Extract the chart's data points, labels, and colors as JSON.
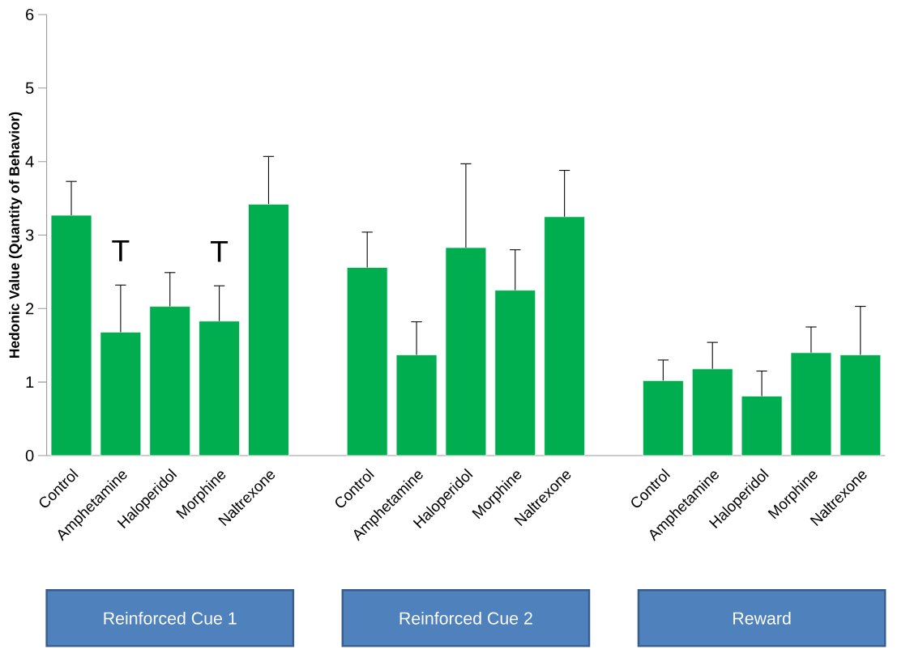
{
  "chart_data": {
    "type": "bar",
    "ylabel": "Hedonic Value (Quantity of Behavior)",
    "categories": [
      "Control",
      "Amphetamine",
      "Haloperidol",
      "Morphine",
      "Naltrexone",
      null,
      "Control",
      "Amphetamine",
      "Haloperidol",
      "Morphine",
      "Naltrexone",
      null,
      "Control",
      "Amphetamine",
      "Haloperidol",
      "Morphine",
      "Naltrexone"
    ],
    "values": [
      3.27,
      1.68,
      2.03,
      1.83,
      3.42,
      null,
      2.56,
      1.37,
      2.83,
      2.25,
      3.25,
      null,
      1.02,
      1.18,
      0.81,
      1.4,
      1.37
    ],
    "errors": [
      0.46,
      0.64,
      0.46,
      0.48,
      0.65,
      null,
      0.48,
      0.45,
      1.14,
      0.55,
      0.63,
      null,
      0.28,
      0.36,
      0.34,
      0.35,
      0.66
    ],
    "value_labels": [
      null,
      "T",
      null,
      "T",
      null,
      null,
      null,
      null,
      null,
      null,
      null,
      null,
      null,
      null,
      null,
      null,
      null
    ],
    "color": "#00ad4f",
    "ylim": [
      0,
      6
    ],
    "yticks": [
      0,
      1,
      2,
      3,
      4,
      5,
      6
    ],
    "annotations": [
      "Reinforced Cue 1",
      "Reinforced Cue 2",
      "Reward"
    ]
  }
}
